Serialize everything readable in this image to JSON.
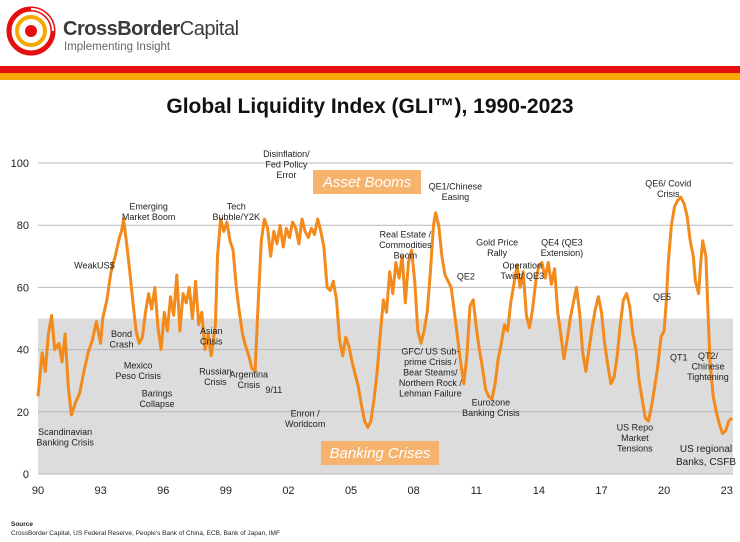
{
  "header": {
    "brand": "CrossBorder Capital",
    "brand_bold": "CrossBorder",
    "brand_rest": "Capital",
    "tagline": "Implementing Insight",
    "logo": "spiral-logo"
  },
  "colors": {
    "line": "#f28a1c",
    "shade": "#dcdcdc",
    "asset_box": "#f6b36e",
    "crisis_box": "#f6b36e",
    "red_band": "#e3100f",
    "orange_band": "#f6a800"
  },
  "footer": {
    "source_label": "Source",
    "source_text": "CrossBorder Capital, US Federal Reserve, People's Bank of China, ECB, Bank of Japan, IMF"
  },
  "chart_data": {
    "type": "line",
    "title": "Global Liquidity Index (GLI™), 1990-2023",
    "xlabel": "",
    "ylabel": "",
    "xlim": [
      1990,
      2023.3
    ],
    "ylim": [
      0,
      100
    ],
    "x_ticks": [
      "90",
      "93",
      "96",
      "99",
      "02",
      "05",
      "08",
      "11",
      "14",
      "17",
      "20",
      "23"
    ],
    "y_ticks": [
      "0",
      "20",
      "40",
      "60",
      "80",
      "100"
    ],
    "shaded_band": [
      0,
      50
    ],
    "boxes": {
      "asset": "Asset Booms",
      "crisis": "Banking Crises"
    },
    "series": [
      {
        "name": "GLI",
        "points": [
          [
            1990.0,
            25
          ],
          [
            1990.2,
            39
          ],
          [
            1990.35,
            33
          ],
          [
            1990.5,
            45
          ],
          [
            1990.65,
            51
          ],
          [
            1990.8,
            40
          ],
          [
            1991.0,
            42
          ],
          [
            1991.15,
            36
          ],
          [
            1991.3,
            45
          ],
          [
            1991.45,
            28
          ],
          [
            1991.6,
            19
          ],
          [
            1991.8,
            23
          ],
          [
            1992.0,
            26
          ],
          [
            1992.2,
            33
          ],
          [
            1992.4,
            39
          ],
          [
            1992.6,
            43
          ],
          [
            1992.8,
            49
          ],
          [
            1993.0,
            42
          ],
          [
            1993.1,
            50
          ],
          [
            1993.3,
            56
          ],
          [
            1993.5,
            65
          ],
          [
            1993.7,
            70
          ],
          [
            1993.9,
            76
          ],
          [
            1994.0,
            78
          ],
          [
            1994.1,
            82
          ],
          [
            1994.25,
            74
          ],
          [
            1994.4,
            65
          ],
          [
            1994.55,
            55
          ],
          [
            1994.7,
            46
          ],
          [
            1994.85,
            42
          ],
          [
            1995.0,
            44
          ],
          [
            1995.15,
            52
          ],
          [
            1995.3,
            58
          ],
          [
            1995.45,
            53
          ],
          [
            1995.6,
            60
          ],
          [
            1995.75,
            47
          ],
          [
            1995.9,
            40
          ],
          [
            1996.05,
            52
          ],
          [
            1996.2,
            46
          ],
          [
            1996.35,
            57
          ],
          [
            1996.5,
            51
          ],
          [
            1996.65,
            64
          ],
          [
            1996.8,
            46
          ],
          [
            1996.95,
            58
          ],
          [
            1997.1,
            55
          ],
          [
            1997.25,
            60
          ],
          [
            1997.4,
            50
          ],
          [
            1997.55,
            62
          ],
          [
            1997.7,
            48
          ],
          [
            1997.85,
            52
          ],
          [
            1998.0,
            40
          ],
          [
            1998.15,
            45
          ],
          [
            1998.3,
            38
          ],
          [
            1998.5,
            48
          ],
          [
            1998.6,
            70
          ],
          [
            1998.75,
            82
          ],
          [
            1998.9,
            78
          ],
          [
            1999.05,
            81
          ],
          [
            1999.2,
            75
          ],
          [
            1999.35,
            72
          ],
          [
            1999.5,
            60
          ],
          [
            1999.65,
            52
          ],
          [
            1999.8,
            45
          ],
          [
            1999.95,
            41
          ],
          [
            2000.1,
            38
          ],
          [
            2000.25,
            34
          ],
          [
            2000.4,
            33
          ],
          [
            2000.55,
            55
          ],
          [
            2000.7,
            75
          ],
          [
            2000.85,
            82
          ],
          [
            2001.0,
            79
          ],
          [
            2001.15,
            70
          ],
          [
            2001.3,
            78
          ],
          [
            2001.45,
            74
          ],
          [
            2001.6,
            80
          ],
          [
            2001.75,
            73
          ],
          [
            2001.9,
            79
          ],
          [
            2002.05,
            76
          ],
          [
            2002.2,
            81
          ],
          [
            2002.35,
            79
          ],
          [
            2002.5,
            74
          ],
          [
            2002.65,
            82
          ],
          [
            2002.8,
            78
          ],
          [
            2002.95,
            76
          ],
          [
            2003.1,
            79
          ],
          [
            2003.25,
            77
          ],
          [
            2003.4,
            82
          ],
          [
            2003.55,
            78
          ],
          [
            2003.7,
            73
          ],
          [
            2003.85,
            60
          ],
          [
            2004.0,
            59
          ],
          [
            2004.15,
            62
          ],
          [
            2004.3,
            56
          ],
          [
            2004.45,
            43
          ],
          [
            2004.6,
            38
          ],
          [
            2004.75,
            44
          ],
          [
            2004.9,
            41
          ],
          [
            2005.05,
            36
          ],
          [
            2005.2,
            32
          ],
          [
            2005.35,
            28
          ],
          [
            2005.5,
            22
          ],
          [
            2005.65,
            17
          ],
          [
            2005.8,
            15
          ],
          [
            2005.95,
            17
          ],
          [
            2006.1,
            24
          ],
          [
            2006.25,
            33
          ],
          [
            2006.4,
            45
          ],
          [
            2006.55,
            56
          ],
          [
            2006.7,
            52
          ],
          [
            2006.85,
            65
          ],
          [
            2007.0,
            58
          ],
          [
            2007.15,
            68
          ],
          [
            2007.3,
            63
          ],
          [
            2007.45,
            70
          ],
          [
            2007.6,
            55
          ],
          [
            2007.75,
            68
          ],
          [
            2007.9,
            72
          ],
          [
            2008.05,
            62
          ],
          [
            2008.2,
            46
          ],
          [
            2008.35,
            42
          ],
          [
            2008.5,
            46
          ],
          [
            2008.65,
            52
          ],
          [
            2008.8,
            65
          ],
          [
            2008.95,
            80
          ],
          [
            2009.05,
            84
          ],
          [
            2009.2,
            80
          ],
          [
            2009.35,
            70
          ],
          [
            2009.5,
            64
          ],
          [
            2009.65,
            62
          ],
          [
            2009.8,
            60
          ],
          [
            2009.95,
            52
          ],
          [
            2010.1,
            44
          ],
          [
            2010.25,
            36
          ],
          [
            2010.4,
            29
          ],
          [
            2010.55,
            38
          ],
          [
            2010.7,
            54
          ],
          [
            2010.85,
            56
          ],
          [
            2011.0,
            47
          ],
          [
            2011.15,
            40
          ],
          [
            2011.3,
            34
          ],
          [
            2011.45,
            27
          ],
          [
            2011.6,
            25
          ],
          [
            2011.75,
            24
          ],
          [
            2011.9,
            29
          ],
          [
            2012.05,
            37
          ],
          [
            2012.2,
            42
          ],
          [
            2012.35,
            48
          ],
          [
            2012.5,
            46
          ],
          [
            2012.65,
            55
          ],
          [
            2012.8,
            61
          ],
          [
            2012.95,
            67
          ],
          [
            2013.1,
            60
          ],
          [
            2013.25,
            65
          ],
          [
            2013.4,
            51
          ],
          [
            2013.55,
            47
          ],
          [
            2013.7,
            53
          ],
          [
            2013.85,
            62
          ],
          [
            2014.0,
            67
          ],
          [
            2014.15,
            68
          ],
          [
            2014.3,
            63
          ],
          [
            2014.45,
            68
          ],
          [
            2014.6,
            61
          ],
          [
            2014.75,
            66
          ],
          [
            2014.9,
            52
          ],
          [
            2015.05,
            45
          ],
          [
            2015.2,
            37
          ],
          [
            2015.35,
            43
          ],
          [
            2015.5,
            50
          ],
          [
            2015.65,
            55
          ],
          [
            2015.8,
            60
          ],
          [
            2015.95,
            52
          ],
          [
            2016.1,
            39
          ],
          [
            2016.25,
            33
          ],
          [
            2016.4,
            40
          ],
          [
            2016.55,
            47
          ],
          [
            2016.7,
            53
          ],
          [
            2016.85,
            57
          ],
          [
            2017.0,
            52
          ],
          [
            2017.15,
            42
          ],
          [
            2017.3,
            35
          ],
          [
            2017.45,
            29
          ],
          [
            2017.6,
            31
          ],
          [
            2017.75,
            38
          ],
          [
            2017.9,
            48
          ],
          [
            2018.05,
            56
          ],
          [
            2018.2,
            58
          ],
          [
            2018.35,
            54
          ],
          [
            2018.5,
            45
          ],
          [
            2018.65,
            40
          ],
          [
            2018.8,
            30
          ],
          [
            2018.95,
            24
          ],
          [
            2019.1,
            18
          ],
          [
            2019.25,
            17
          ],
          [
            2019.4,
            22
          ],
          [
            2019.55,
            28
          ],
          [
            2019.7,
            35
          ],
          [
            2019.85,
            44
          ],
          [
            2020.0,
            46
          ],
          [
            2020.1,
            55
          ],
          [
            2020.2,
            68
          ],
          [
            2020.35,
            80
          ],
          [
            2020.5,
            86
          ],
          [
            2020.65,
            88
          ],
          [
            2020.8,
            89
          ],
          [
            2020.95,
            87
          ],
          [
            2021.1,
            83
          ],
          [
            2021.25,
            75
          ],
          [
            2021.4,
            70
          ],
          [
            2021.5,
            62
          ],
          [
            2021.65,
            58
          ],
          [
            2021.75,
            68
          ],
          [
            2021.85,
            75
          ],
          [
            2022.0,
            70
          ],
          [
            2022.1,
            52
          ],
          [
            2022.2,
            36
          ],
          [
            2022.35,
            25
          ],
          [
            2022.5,
            20
          ],
          [
            2022.65,
            16
          ],
          [
            2022.8,
            13
          ],
          [
            2022.95,
            14
          ],
          [
            2023.1,
            17
          ],
          [
            2023.25,
            18
          ]
        ]
      }
    ],
    "annotations": [
      {
        "lines": [
          "Scandinavian",
          "Banking Crisis"
        ],
        "x": 1991.3,
        "y": 12.5
      },
      {
        "lines": [
          "WeakUS$"
        ],
        "x": 1992.7,
        "y": 66
      },
      {
        "lines": [
          "Emerging",
          "Market Boom"
        ],
        "x": 1995.3,
        "y": 85
      },
      {
        "lines": [
          "Bond",
          "Crash"
        ],
        "x": 1994.0,
        "y": 44
      },
      {
        "lines": [
          "Mexico",
          "Peso Crisis"
        ],
        "x": 1994.8,
        "y": 34
      },
      {
        "lines": [
          "Barings",
          "Collapse"
        ],
        "x": 1995.7,
        "y": 25
      },
      {
        "lines": [
          "Asian",
          "Crisis"
        ],
        "x": 1998.3,
        "y": 45
      },
      {
        "lines": [
          "Russian",
          "Crisis"
        ],
        "x": 1998.5,
        "y": 32
      },
      {
        "lines": [
          "Tech",
          "Bubble/Y2K"
        ],
        "x": 1999.5,
        "y": 85
      },
      {
        "lines": [
          "Argentina",
          "Crisis"
        ],
        "x": 2000.1,
        "y": 31
      },
      {
        "lines": [
          "9/11"
        ],
        "x": 2001.3,
        "y": 26
      },
      {
        "lines": [
          "Disinflation/",
          "Fed Policy",
          "Error"
        ],
        "x": 2001.9,
        "y": 102
      },
      {
        "lines": [
          "Enron /",
          "Worldcom"
        ],
        "x": 2002.8,
        "y": 18.5
      },
      {
        "lines": [
          "Real Estate /",
          "Commodities",
          "Boom"
        ],
        "x": 2007.6,
        "y": 76
      },
      {
        "lines": [
          "GFC/ US Sub-",
          "prime Crisis /",
          "Bear Steams/",
          "Northern Rock /",
          "Lehman Failure"
        ],
        "x": 2008.8,
        "y": 38.5
      },
      {
        "lines": [
          "QE1/Chinese",
          "Easing"
        ],
        "x": 2010.0,
        "y": 91.5
      },
      {
        "lines": [
          "QE2"
        ],
        "x": 2010.5,
        "y": 62.5
      },
      {
        "lines": [
          "Gold Price",
          "Rally"
        ],
        "x": 2012.0,
        "y": 73.5
      },
      {
        "lines": [
          "Operation",
          "Twist/ QE3"
        ],
        "x": 2013.2,
        "y": 66
      },
      {
        "lines": [
          "QE4 (QE3",
          "Extension)"
        ],
        "x": 2015.1,
        "y": 73.5
      },
      {
        "lines": [
          "Eurozone",
          "Banking Crisis"
        ],
        "x": 2011.7,
        "y": 22
      },
      {
        "lines": [
          "QE5"
        ],
        "x": 2019.9,
        "y": 56
      },
      {
        "lines": [
          "US Repo",
          "Market",
          "Tensions"
        ],
        "x": 2018.6,
        "y": 14
      },
      {
        "lines": [
          "QE6/ Covid",
          "Crisis"
        ],
        "x": 2020.2,
        "y": 92.5
      },
      {
        "lines": [
          "QT1"
        ],
        "x": 2020.7,
        "y": 36.5
      },
      {
        "lines": [
          "QT2/",
          "Chinese",
          "Tightening"
        ],
        "x": 2022.1,
        "y": 37
      }
    ],
    "side_note": [
      "US regional",
      "Banks, CSFB"
    ]
  }
}
